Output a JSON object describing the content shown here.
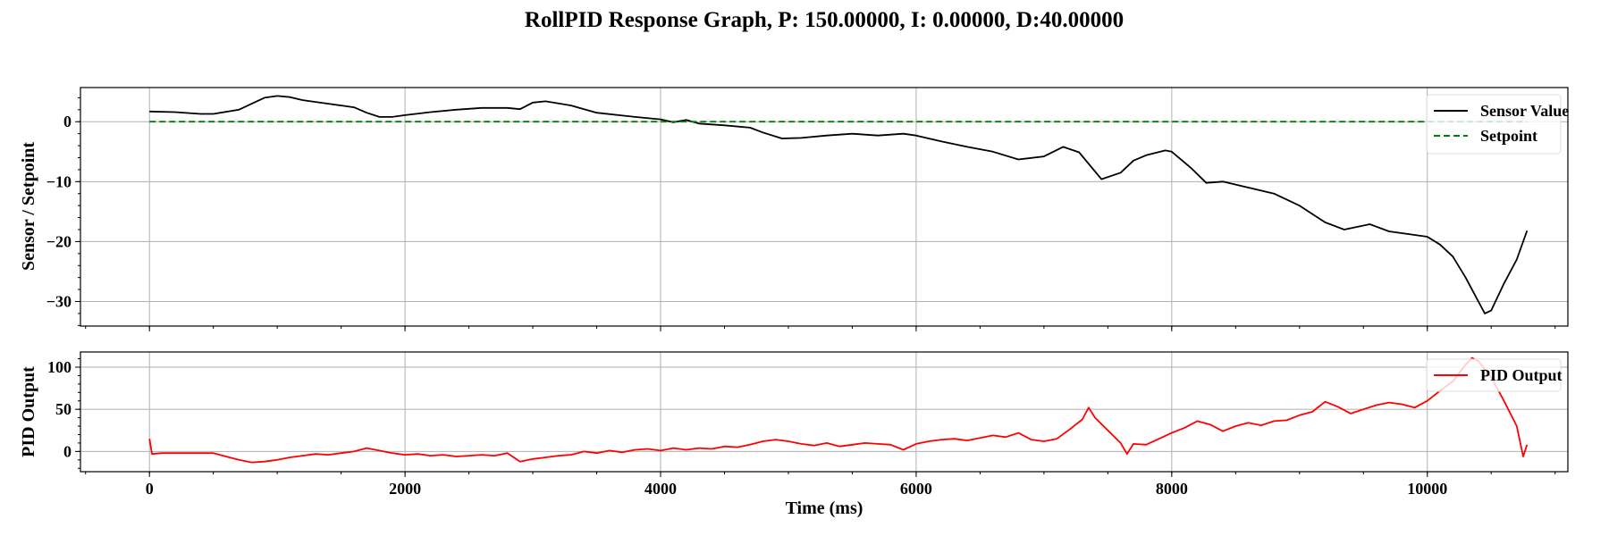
{
  "chart_data": [
    {
      "type": "line",
      "title": "RollPID Response Graph, P: 150.00000, I: 0.00000, D:40.00000",
      "xlabel": "",
      "ylabel": "Sensor / Setpoint",
      "xlim": [
        -540,
        11100
      ],
      "ylim": [
        -34.1,
        5.7
      ],
      "xticks": [
        0,
        2000,
        4000,
        6000,
        8000,
        10000
      ],
      "yticks": [
        0,
        -10,
        -20,
        -30
      ],
      "grid": true,
      "legend": "upper-right",
      "series": [
        {
          "name": "Sensor Value",
          "color": "#000000",
          "style": "solid",
          "x": [
            0,
            200,
            400,
            500,
            700,
            800,
            900,
            1000,
            1100,
            1200,
            1400,
            1600,
            1700,
            1800,
            1900,
            2000,
            2200,
            2400,
            2600,
            2800,
            2900,
            3000,
            3100,
            3300,
            3500,
            3800,
            4000,
            4100,
            4200,
            4300,
            4500,
            4700,
            4800,
            4950,
            5100,
            5300,
            5500,
            5700,
            5900,
            6000,
            6200,
            6400,
            6600,
            6800,
            7000,
            7150,
            7275,
            7450,
            7600,
            7700,
            7800,
            7950,
            8000,
            8150,
            8270,
            8400,
            8600,
            8800,
            9000,
            9200,
            9350,
            9550,
            9700,
            9900,
            10000,
            10100,
            10200,
            10300,
            10400,
            10450,
            10500,
            10600,
            10700,
            10780
          ],
          "y": [
            1.7,
            1.6,
            1.3,
            1.3,
            2,
            3,
            4,
            4.3,
            4.1,
            3.6,
            3,
            2.4,
            1.5,
            0.8,
            0.8,
            1.1,
            1.6,
            2,
            2.3,
            2.3,
            2.1,
            3.2,
            3.4,
            2.7,
            1.5,
            0.8,
            0.4,
            -0.1,
            0.3,
            -0.3,
            -0.6,
            -1,
            -1.8,
            -2.8,
            -2.7,
            -2.3,
            -2,
            -2.3,
            -2,
            -2.3,
            -3.3,
            -4.2,
            -5,
            -6.3,
            -5.8,
            -4.2,
            -5.1,
            -9.6,
            -8.5,
            -6.5,
            -5.6,
            -4.8,
            -5,
            -7.7,
            -10.2,
            -10,
            -11,
            -12,
            -14,
            -16.8,
            -18,
            -17.1,
            -18.3,
            -18.9,
            -19.2,
            -20.5,
            -22.5,
            -26,
            -30,
            -32,
            -31.5,
            -27,
            -23,
            -18.2
          ]
        },
        {
          "name": "Setpoint",
          "color": "#007f00",
          "style": "dashed",
          "x": [
            0,
            10780
          ],
          "y": [
            0,
            0
          ]
        }
      ]
    },
    {
      "type": "line",
      "xlabel": "Time (ms)",
      "ylabel": "PID Output",
      "xlim": [
        -540,
        11100
      ],
      "ylim": [
        -24,
        118
      ],
      "xticks": [
        0,
        2000,
        4000,
        6000,
        8000,
        10000
      ],
      "yticks": [
        0,
        50,
        100
      ],
      "grid": true,
      "legend": "upper-right",
      "series": [
        {
          "name": "PID Output",
          "color": "#ff0000",
          "style": "solid",
          "x": [
            0,
            20,
            100,
            500,
            600,
            700,
            800,
            900,
            1000,
            1100,
            1200,
            1300,
            1400,
            1500,
            1600,
            1700,
            1800,
            1900,
            2000,
            2100,
            2200,
            2300,
            2400,
            2500,
            2600,
            2700,
            2800,
            2900,
            3000,
            3100,
            3200,
            3300,
            3400,
            3500,
            3600,
            3700,
            3800,
            3900,
            4000,
            4100,
            4200,
            4300,
            4400,
            4500,
            4600,
            4700,
            4800,
            4900,
            5000,
            5100,
            5200,
            5300,
            5400,
            5500,
            5600,
            5700,
            5800,
            5900,
            6000,
            6100,
            6200,
            6300,
            6400,
            6500,
            6600,
            6700,
            6800,
            6900,
            7000,
            7100,
            7200,
            7300,
            7350,
            7400,
            7500,
            7600,
            7650,
            7700,
            7800,
            7900,
            8000,
            8100,
            8200,
            8300,
            8400,
            8500,
            8600,
            8700,
            8800,
            8900,
            9000,
            9100,
            9200,
            9300,
            9400,
            9500,
            9600,
            9700,
            9800,
            9900,
            10000,
            10100,
            10200,
            10300,
            10350,
            10400,
            10500,
            10600,
            10700,
            10750,
            10780
          ],
          "y": [
            15,
            -3,
            -2,
            -2,
            -6,
            -10,
            -13,
            -12,
            -10,
            -7,
            -5,
            -3,
            -4,
            -2,
            0,
            4,
            1,
            -2,
            -4,
            -3,
            -5,
            -4,
            -6,
            -5,
            -4,
            -5,
            -2,
            -12,
            -9,
            -7,
            -5,
            -4,
            0,
            -2,
            1,
            -1,
            2,
            3,
            1,
            4,
            2,
            4,
            3,
            6,
            5,
            8,
            12,
            14,
            12,
            9,
            7,
            10,
            6,
            8,
            10,
            9,
            8,
            2,
            9,
            12,
            14,
            15,
            13,
            16,
            19,
            17,
            22,
            14,
            12,
            15,
            26,
            38,
            52,
            40,
            25,
            10,
            -3,
            9,
            8,
            15,
            22,
            28,
            36,
            32,
            24,
            30,
            34,
            31,
            36,
            37,
            43,
            47,
            59,
            53,
            45,
            50,
            55,
            58,
            56,
            52,
            60,
            72,
            83,
            103,
            111,
            107,
            88,
            60,
            30,
            -6,
            8
          ]
        }
      ]
    }
  ]
}
